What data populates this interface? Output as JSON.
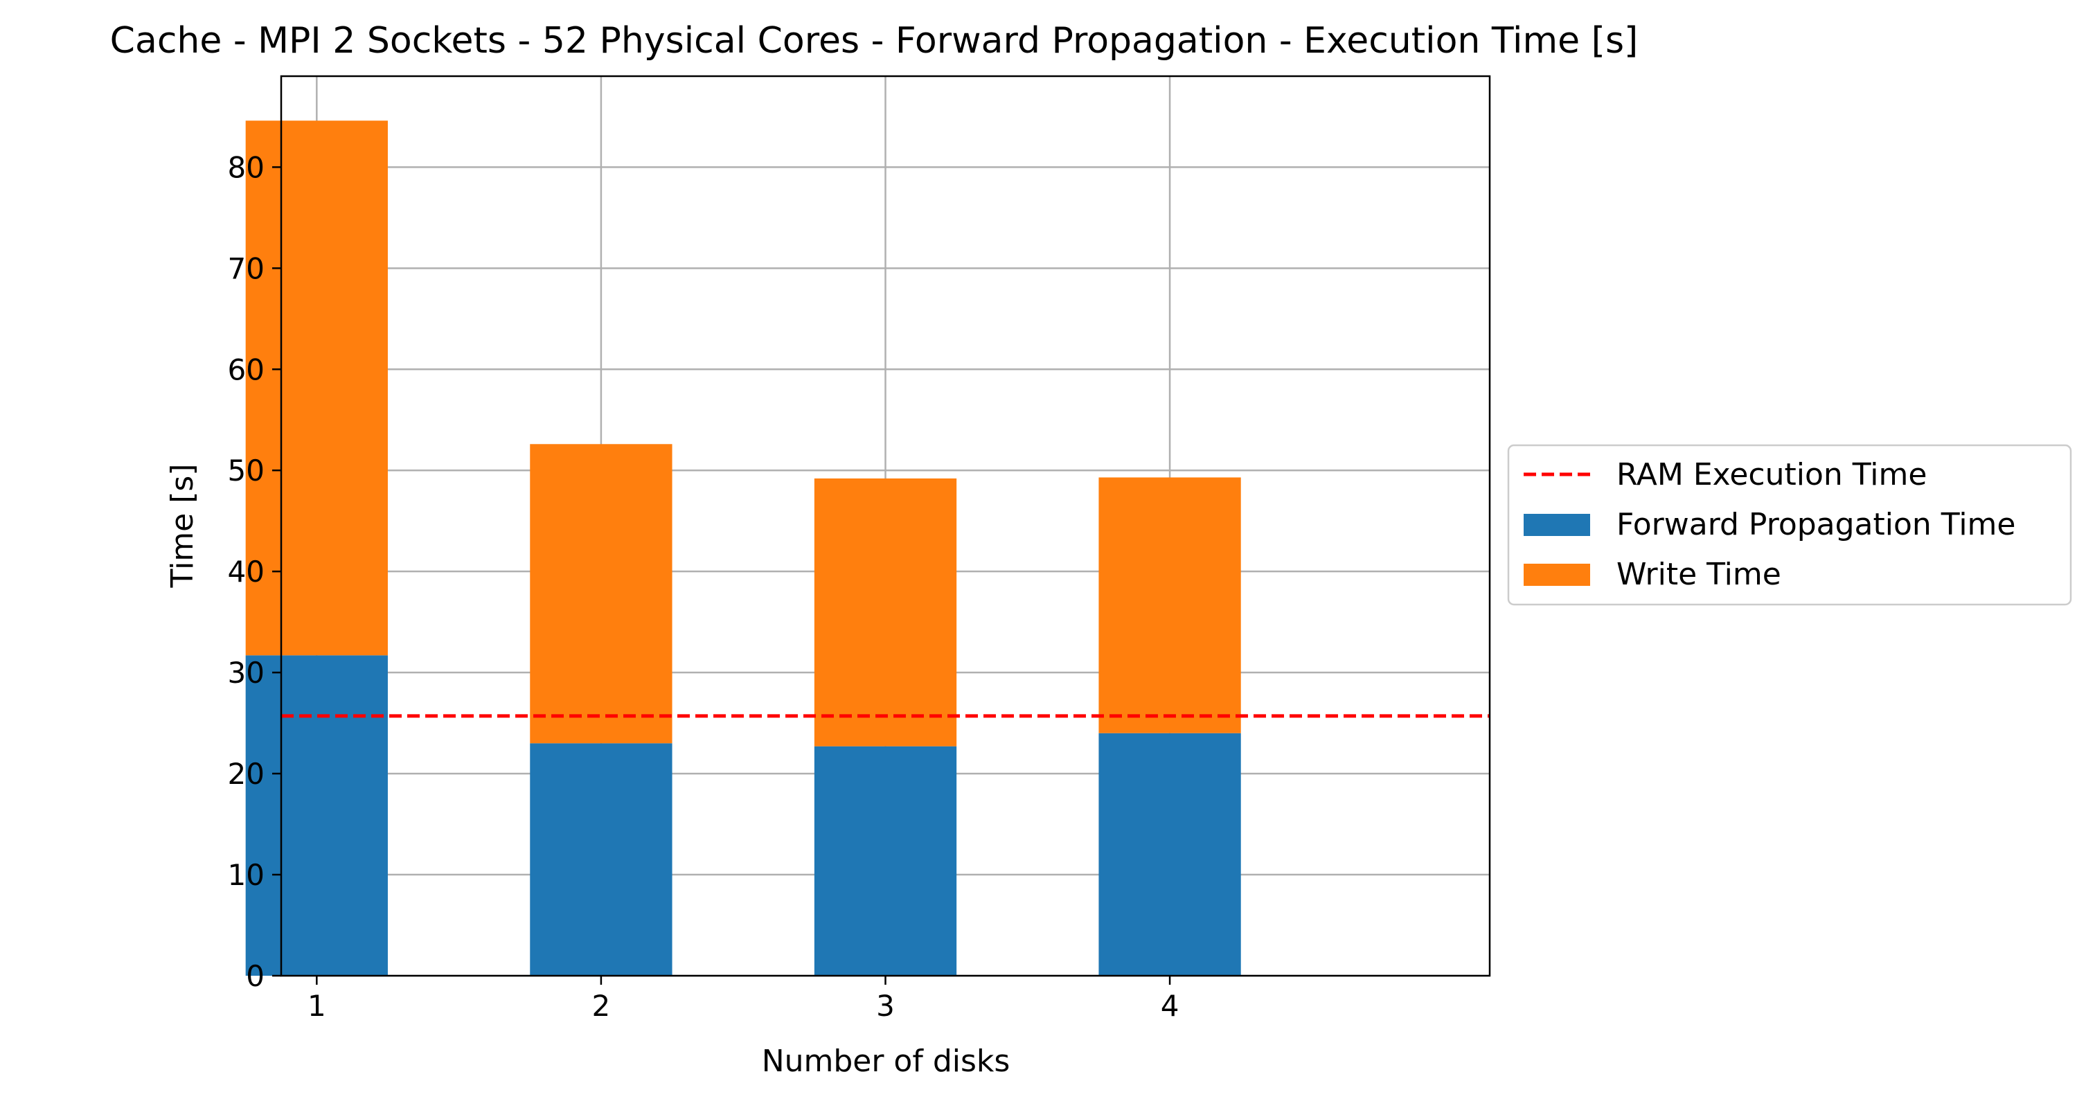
{
  "chart_data": {
    "type": "bar",
    "stacked": true,
    "title": "Cache - MPI 2 Sockets - 52 Physical Cores - Forward Propagation - Execution Time [s]",
    "xlabel": "Number of disks",
    "ylabel": "Time [s]",
    "categories": [
      "1",
      "2",
      "3",
      "4"
    ],
    "series": [
      {
        "name": "Forward Propagation Time",
        "color": "#1f77b4",
        "values": [
          31.7,
          23.0,
          22.7,
          24.0
        ]
      },
      {
        "name": "Write Time",
        "color": "#ff7f0e",
        "values": [
          52.9,
          29.6,
          26.5,
          25.3
        ]
      }
    ],
    "reference_line": {
      "name": "RAM Execution Time",
      "value": 25.7,
      "color": "#ff0000",
      "style": "dashed"
    },
    "ylim": [
      0,
      89
    ],
    "yticks": [
      0,
      10,
      20,
      30,
      40,
      50,
      60,
      70,
      80
    ],
    "grid": true,
    "legend_position": "outside right"
  }
}
